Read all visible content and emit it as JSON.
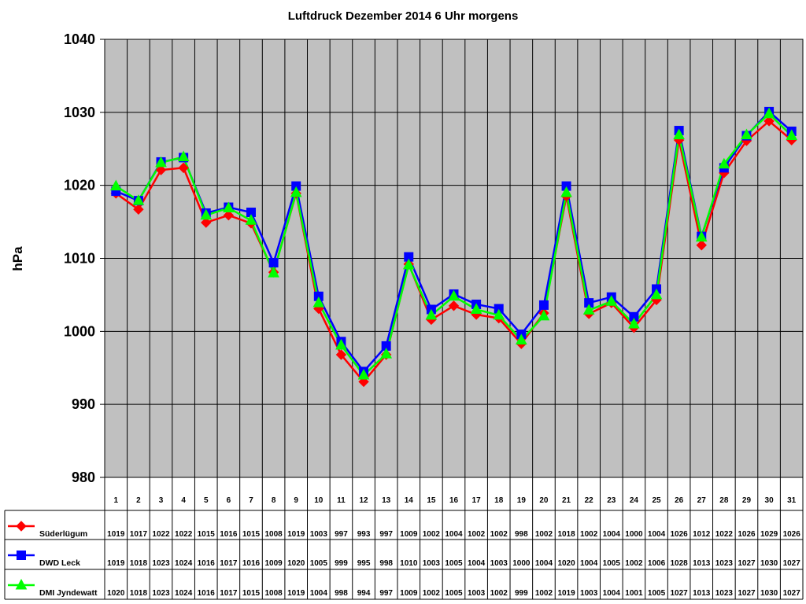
{
  "chart_data": {
    "type": "line",
    "title": "Luftdruck Dezember 2014 6 Uhr morgens",
    "ylabel": "hPa",
    "xlabel": "",
    "ylim": [
      980,
      1040
    ],
    "yticks": [
      980,
      990,
      1000,
      1010,
      1020,
      1030,
      1040
    ],
    "grid": true,
    "legend_position": "table-left",
    "plot_background": "#c0c0c0",
    "categories": [
      "1",
      "2",
      "3",
      "4",
      "5",
      "6",
      "7",
      "8",
      "9",
      "10",
      "11",
      "12",
      "13",
      "14",
      "15",
      "16",
      "17",
      "18",
      "19",
      "20",
      "21",
      "22",
      "23",
      "24",
      "25",
      "26",
      "27",
      "28",
      "29",
      "30",
      "31"
    ],
    "series": [
      {
        "name": "Süderlügum",
        "color": "#ff0000",
        "marker": "diamond",
        "values": [
          1019,
          1017,
          1022,
          1022,
          1015,
          1016,
          1015,
          1008,
          1019,
          1003,
          997,
          993,
          997,
          1009,
          1002,
          1004,
          1002,
          1002,
          998,
          1002,
          1018,
          1002,
          1004,
          1000,
          1004,
          1026,
          1012,
          1022,
          1026,
          1029,
          1026
        ],
        "exact": [
          1018.9,
          1016.7,
          1022.1,
          1022.4,
          1014.9,
          1015.9,
          1014.8,
          1008.1,
          1018.9,
          1003.1,
          996.8,
          993.1,
          996.8,
          1009.2,
          1001.6,
          1003.5,
          1002.3,
          1001.8,
          998.3,
          1002.5,
          1018.5,
          1002.4,
          1003.9,
          1000.5,
          1004.3,
          1026.2,
          1011.8,
          1021.7,
          1026.1,
          1028.8,
          1026.2
        ]
      },
      {
        "name": "DWD Leck",
        "color": "#0000ff",
        "marker": "square",
        "values": [
          1019,
          1018,
          1023,
          1024,
          1016,
          1017,
          1016,
          1009,
          1020,
          1005,
          999,
          995,
          998,
          1010,
          1003,
          1005,
          1004,
          1003,
          1000,
          1004,
          1020,
          1004,
          1005,
          1002,
          1006,
          1028,
          1013,
          1023,
          1027,
          1030,
          1027
        ],
        "exact": [
          1019.2,
          1017.9,
          1023.2,
          1023.8,
          1016.2,
          1017.0,
          1016.3,
          1009.4,
          1019.9,
          1004.8,
          998.6,
          994.5,
          998.0,
          1010.2,
          1003.0,
          1005.1,
          1003.7,
          1003.1,
          999.6,
          1003.6,
          1019.9,
          1003.9,
          1004.7,
          1002.0,
          1005.8,
          1027.5,
          1013.0,
          1022.4,
          1026.8,
          1030.1,
          1027.4
        ]
      },
      {
        "name": "DMI Jyndewatt",
        "color": "#00ff00",
        "marker": "triangle",
        "values": [
          1020,
          1018,
          1023,
          1024,
          1016,
          1017,
          1015,
          1008,
          1019,
          1004,
          998,
          994,
          997,
          1009,
          1002,
          1005,
          1003,
          1002,
          999,
          1002,
          1019,
          1003,
          1004,
          1001,
          1005,
          1027,
          1013,
          1023,
          1027,
          1030,
          1027
        ],
        "exact": [
          1019.9,
          1017.9,
          1023.1,
          1023.9,
          1015.9,
          1016.9,
          1015.2,
          1008.0,
          1019.0,
          1003.9,
          998.1,
          994.0,
          996.9,
          1009.1,
          1002.2,
          1004.8,
          1003.0,
          1002.2,
          998.8,
          1002.1,
          1019.0,
          1002.9,
          1004.1,
          1001.0,
          1005.0,
          1026.9,
          1012.9,
          1022.9,
          1026.9,
          1029.8,
          1026.8
        ]
      }
    ]
  }
}
